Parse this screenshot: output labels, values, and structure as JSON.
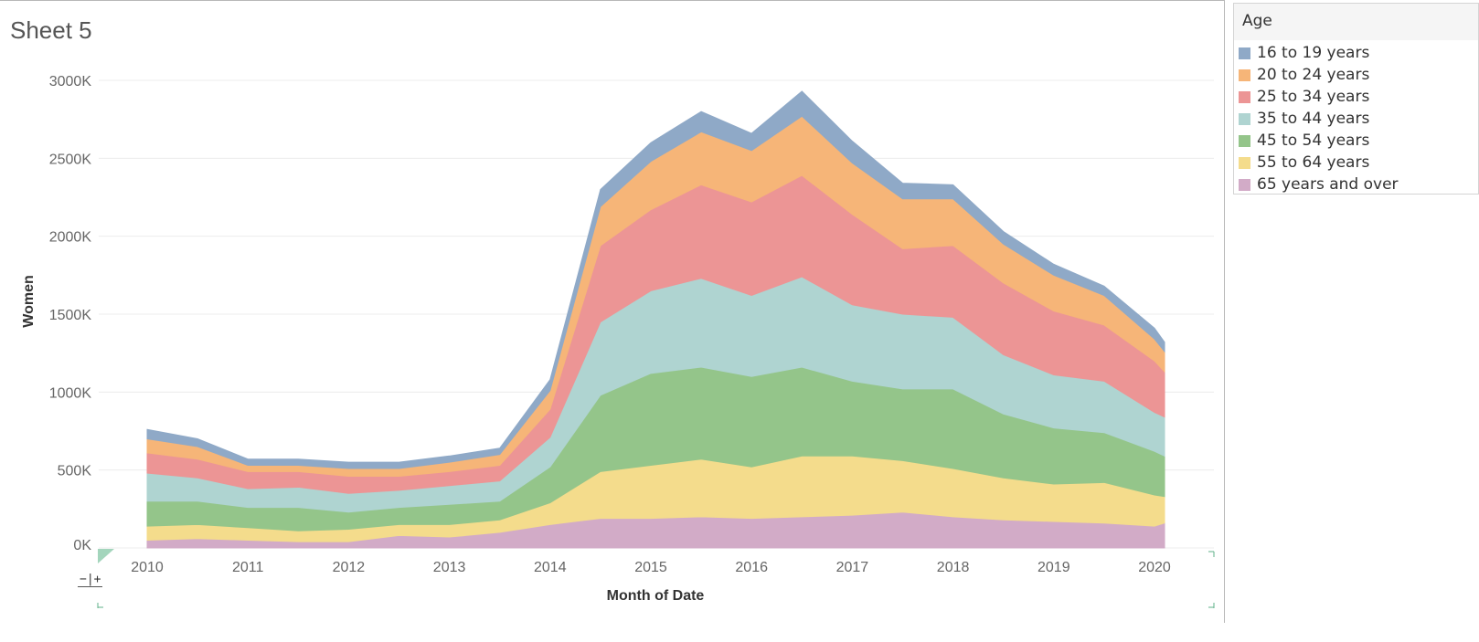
{
  "sheet": {
    "title": "Sheet 5"
  },
  "legend": {
    "title": "Age",
    "items": [
      {
        "label": "16 to 19 years",
        "color": "#8fa9c7"
      },
      {
        "label": "20 to 24 years",
        "color": "#f6b578"
      },
      {
        "label": "25 to 34 years",
        "color": "#ec9595"
      },
      {
        "label": "35 to 44 years",
        "color": "#afd4d1"
      },
      {
        "label": "45 to 54 years",
        "color": "#94c58a"
      },
      {
        "label": "55 to 64 years",
        "color": "#f4dc8c"
      },
      {
        "label": "65 years and over",
        "color": "#d2abc7"
      }
    ]
  },
  "controls": {
    "zoom_icon": "zoom-out-in-icon"
  },
  "chart_data": {
    "type": "area",
    "stacked": true,
    "xlabel": "Month of Date",
    "ylabel": "Women",
    "ylim": [
      0,
      3000000
    ],
    "y_ticks": [
      "0K",
      "500K",
      "1000K",
      "1500K",
      "2000K",
      "2500K",
      "3000K"
    ],
    "x_ticks": [
      "2010",
      "2011",
      "2012",
      "2013",
      "2014",
      "2015",
      "2016",
      "2017",
      "2018",
      "2019",
      "2020"
    ],
    "x_year_points": [
      2010.0,
      2010.5,
      2011.0,
      2011.5,
      2012.0,
      2012.5,
      2013.0,
      2013.5,
      2014.0,
      2014.5,
      2015.0,
      2015.5,
      2016.0,
      2016.5,
      2017.0,
      2017.5,
      2018.0,
      2018.5,
      2019.0,
      2019.5,
      2020.0,
      2020.1
    ],
    "grid": "horizontal",
    "legend_position": "right",
    "series": [
      {
        "name": "65 years and over",
        "values": [
          50000,
          60000,
          50000,
          40000,
          40000,
          80000,
          70000,
          100000,
          150000,
          190000,
          190000,
          200000,
          190000,
          200000,
          210000,
          230000,
          200000,
          180000,
          170000,
          160000,
          140000,
          160000
        ]
      },
      {
        "name": "55 to 64 years",
        "values": [
          90000,
          90000,
          80000,
          70000,
          80000,
          70000,
          80000,
          80000,
          140000,
          300000,
          340000,
          370000,
          330000,
          390000,
          380000,
          330000,
          310000,
          270000,
          240000,
          260000,
          200000,
          170000
        ]
      },
      {
        "name": "45 to 54 years",
        "values": [
          160000,
          150000,
          130000,
          150000,
          110000,
          110000,
          130000,
          120000,
          230000,
          490000,
          590000,
          590000,
          580000,
          570000,
          480000,
          460000,
          510000,
          410000,
          360000,
          320000,
          280000,
          260000
        ]
      },
      {
        "name": "35 to 44 years",
        "values": [
          180000,
          150000,
          120000,
          130000,
          120000,
          110000,
          120000,
          130000,
          190000,
          470000,
          530000,
          570000,
          520000,
          580000,
          490000,
          480000,
          460000,
          380000,
          340000,
          330000,
          250000,
          250000
        ]
      },
      {
        "name": "25 to 34 years",
        "values": [
          130000,
          120000,
          110000,
          100000,
          110000,
          90000,
          90000,
          100000,
          180000,
          490000,
          520000,
          600000,
          600000,
          650000,
          580000,
          420000,
          460000,
          460000,
          410000,
          360000,
          330000,
          290000
        ]
      },
      {
        "name": "20 to 24 years",
        "values": [
          90000,
          80000,
          40000,
          40000,
          50000,
          50000,
          60000,
          70000,
          120000,
          250000,
          310000,
          340000,
          330000,
          380000,
          330000,
          320000,
          300000,
          250000,
          230000,
          190000,
          140000,
          130000
        ]
      },
      {
        "name": "16 to 19 years",
        "values": [
          60000,
          50000,
          40000,
          40000,
          40000,
          40000,
          40000,
          40000,
          70000,
          110000,
          120000,
          130000,
          110000,
          160000,
          140000,
          100000,
          90000,
          80000,
          70000,
          60000,
          70000,
          60000
        ]
      }
    ]
  }
}
